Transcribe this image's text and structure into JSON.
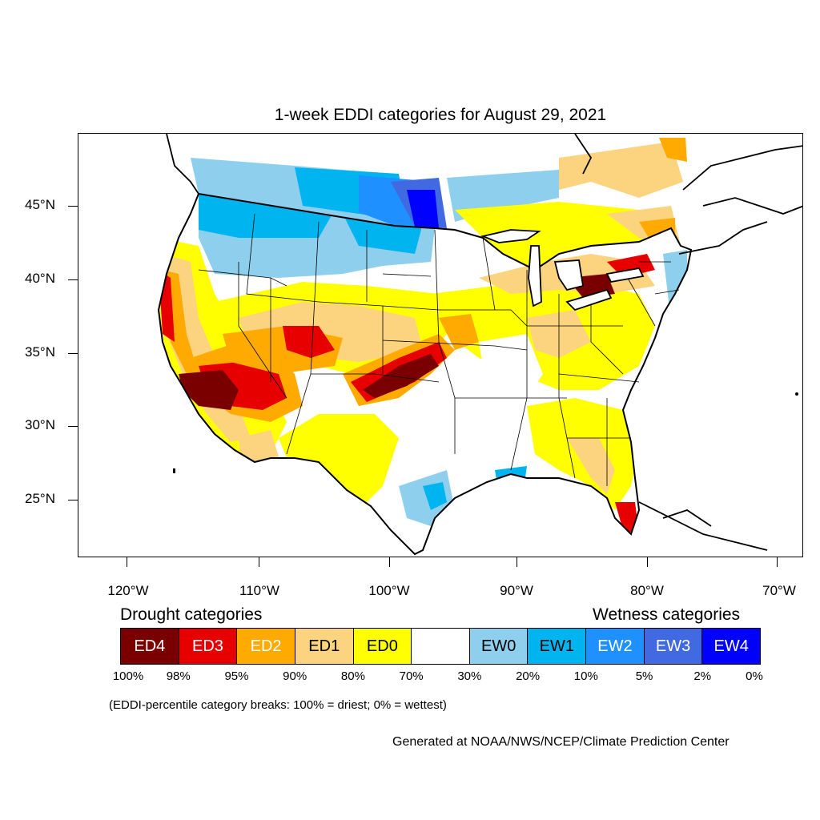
{
  "title": "1-week EDDI categories for August 29, 2021",
  "lat_labels": [
    "45°N",
    "40°N",
    "35°N",
    "30°N",
    "25°N"
  ],
  "lon_labels": [
    "120°W",
    "110°W",
    "100°W",
    "90°W",
    "80°W",
    "70°W"
  ],
  "legend": {
    "drought_heading": "Drought categories",
    "wetness_heading": "Wetness categories",
    "categories": [
      {
        "label": "ED4",
        "color": "#7a0000",
        "text_color": "#ffffff"
      },
      {
        "label": "ED3",
        "color": "#e60000",
        "text_color": "#ffffff"
      },
      {
        "label": "ED2",
        "color": "#ffaa00",
        "text_color": "#ffffff"
      },
      {
        "label": "ED1",
        "color": "#fcd37f",
        "text_color": "#000000"
      },
      {
        "label": "ED0",
        "color": "#ffff00",
        "text_color": "#000000"
      },
      {
        "label": "",
        "color": "#ffffff",
        "text_color": "#000000"
      },
      {
        "label": "EW0",
        "color": "#8fcfee",
        "text_color": "#000000"
      },
      {
        "label": "EW1",
        "color": "#00b4f0",
        "text_color": "#000000"
      },
      {
        "label": "EW2",
        "color": "#1e90ff",
        "text_color": "#ffffff"
      },
      {
        "label": "EW3",
        "color": "#4169e1",
        "text_color": "#ffffff"
      },
      {
        "label": "EW4",
        "color": "#0000ff",
        "text_color": "#ffffff"
      }
    ],
    "breaks": [
      "100%",
      "98%",
      "95%",
      "90%",
      "80%",
      "70%",
      "30%",
      "20%",
      "10%",
      "5%",
      "2%",
      "0%"
    ]
  },
  "note": "(EDDI-percentile category breaks: 100% = driest; 0% = wettest)",
  "credit": "Generated at NOAA/NWS/NCEP/Climate Prediction Center"
}
